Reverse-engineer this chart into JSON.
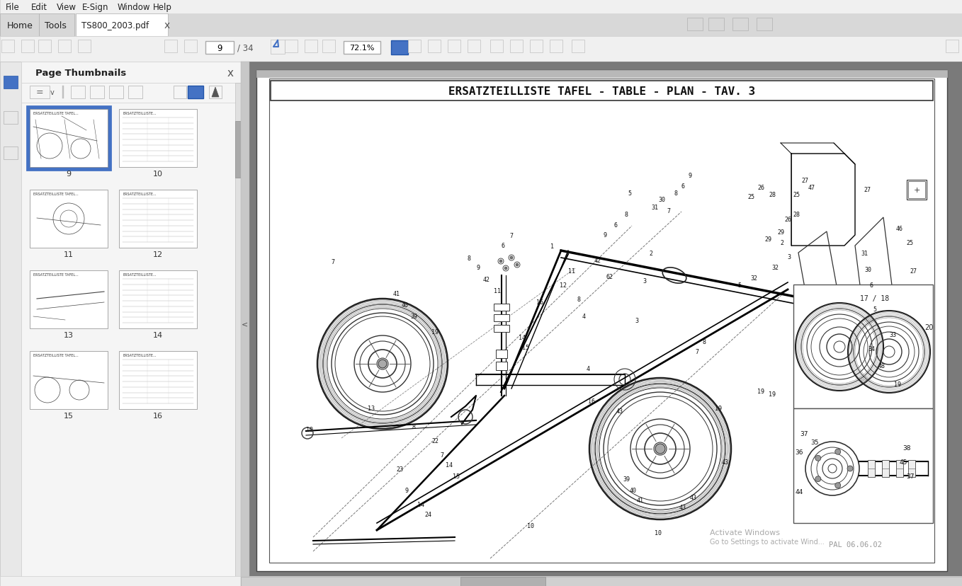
{
  "title": "ERSATZTEILLISTE TAFEL - TABLE - PLAN - TAV. 3",
  "filename": "TS800_2003.pdf",
  "page_current": 9,
  "page_total": 34,
  "zoom_level": "72.1%",
  "bg_color": "#f0f0f0",
  "toolbar_bg": "#e8e8e8",
  "tab_bg": "#ffffff",
  "panel_bg": "#f5f5f5",
  "pdf_bg": "#ffffff",
  "pdf_border": "#888888",
  "thumbnail_border_active": "#4472c4",
  "thumbnail_bg": "#ffffff",
  "thumbnail_numbers": [
    9,
    10,
    11,
    12,
    13,
    14,
    15,
    16
  ],
  "watermark_line1": "Activate Windows",
  "watermark_line2": "Go to Settings to activate Wind...",
  "copyright_text": "PAL 06.06.02",
  "page_thumbnails_label": "Page Thumbnails",
  "menu_items": [
    "File",
    "Edit",
    "View",
    "E-Sign",
    "Window",
    "Help"
  ],
  "nav_tabs": [
    "Home",
    "Tools"
  ],
  "diagram_title_fontsize": 11,
  "gray_bar_color": "#c0c0c0",
  "scrollbar_color": "#b0b0b0",
  "watermark_color": "#aaaaaa"
}
